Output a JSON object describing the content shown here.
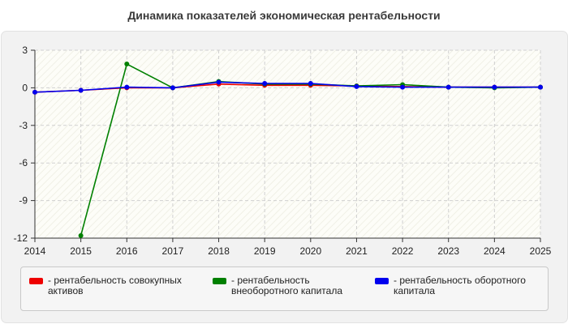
{
  "title": "Динамика показателей экономическая рентабельности",
  "chart_data": {
    "type": "line",
    "x": [
      "2014",
      "2015",
      "2016",
      "2017",
      "2018",
      "2019",
      "2020",
      "2021",
      "2022",
      "2023",
      "2024",
      "2025"
    ],
    "ylim": [
      -12,
      3
    ],
    "yticks": [
      3,
      0,
      -3,
      -6,
      -9,
      -12
    ],
    "grid": true,
    "legend_position": "bottom",
    "series": [
      {
        "name": "рентабельность совокупных активов",
        "color": "#ee0000",
        "values": [
          -0.35,
          -0.2,
          0.0,
          0.0,
          0.3,
          0.2,
          0.2,
          0.15,
          0.1,
          0.05,
          0.05,
          0.05
        ]
      },
      {
        "name": "рентабельность внеоборотного капитала",
        "color": "#008000",
        "values": [
          null,
          -11.8,
          1.9,
          0.0,
          0.5,
          0.3,
          0.3,
          0.15,
          0.25,
          0.05,
          0.0,
          0.05
        ]
      },
      {
        "name": "рентабельность оборотного капитала",
        "color": "#0000ee",
        "values": [
          -0.35,
          -0.2,
          0.05,
          0.0,
          0.45,
          0.35,
          0.35,
          0.1,
          0.05,
          0.05,
          0.05,
          0.05
        ]
      }
    ]
  },
  "legend": {
    "items": [
      {
        "label": "- рентабельность совокупных активов",
        "color": "#ee0000"
      },
      {
        "label": "- рентабельность внеоборотного капитала",
        "color": "#008000"
      },
      {
        "label": "- рентабельность оборотного капитала",
        "color": "#0000ee"
      }
    ]
  }
}
